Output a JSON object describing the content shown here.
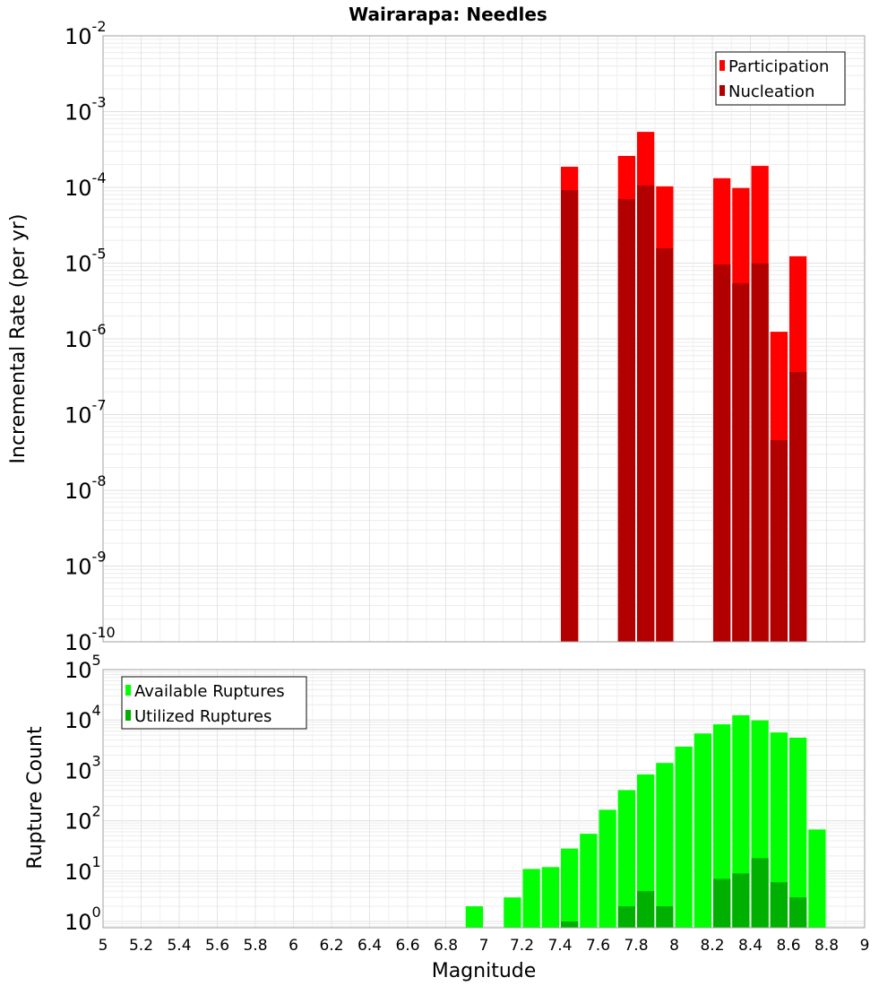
{
  "chart_data": [
    {
      "type": "bar",
      "title": "Wairarapa: Needles",
      "xlabel": "",
      "ylabel": "Incremental Rate (per yr)",
      "yscale": "log",
      "ylim": [
        1e-10,
        0.01
      ],
      "xlim": [
        5,
        9
      ],
      "grid": true,
      "legend_position": "top-right",
      "x": [
        7.45,
        7.75,
        7.85,
        7.95,
        8.25,
        8.35,
        8.45,
        8.55,
        8.65
      ],
      "series": [
        {
          "name": "Participation",
          "color": "#ff0000",
          "values": [
            0.000187,
            0.00026,
            0.00054,
            0.000103,
            0.000132,
            9.8e-05,
            0.000192,
            1.24e-06,
            1.23e-05
          ]
        },
        {
          "name": "Nucleation",
          "color": "#b20000",
          "values": [
            9.2e-05,
            7e-05,
            0.000106,
            1.57e-05,
            9.6e-06,
            5.4e-06,
            9.9e-06,
            4.6e-08,
            3.65e-07
          ]
        }
      ],
      "ytick_exponents": [
        -10,
        -9,
        -8,
        -7,
        -6,
        -5,
        -4,
        -3,
        -2
      ]
    },
    {
      "type": "bar",
      "xlabel": "Magnitude",
      "ylabel": "Rupture Count",
      "yscale": "log",
      "ylim": [
        0.75,
        100000.0
      ],
      "xlim": [
        5,
        9
      ],
      "grid": true,
      "legend_position": "top-left",
      "x": [
        6.95,
        7.15,
        7.25,
        7.35,
        7.45,
        7.55,
        7.65,
        7.75,
        7.85,
        7.95,
        8.05,
        8.15,
        8.25,
        8.35,
        8.45,
        8.55,
        8.65,
        8.75
      ],
      "series": [
        {
          "name": "Available Ruptures",
          "color": "#00ff00",
          "values": [
            2,
            3,
            11,
            12,
            28,
            55,
            165,
            405,
            830,
            1400,
            2950,
            5400,
            8200,
            12400,
            9800,
            5650,
            4450,
            67
          ]
        },
        {
          "name": "Utilized Ruptures",
          "color": "#00b000",
          "values": [
            0,
            0,
            0,
            0,
            1,
            0,
            0,
            2,
            4,
            2,
            0,
            0,
            7,
            9,
            18,
            6,
            3,
            0
          ]
        }
      ],
      "ytick_exponents": [
        0,
        1,
        2,
        3,
        4,
        5
      ],
      "xticks": [
        "5",
        "5.2",
        "5.4",
        "5.6",
        "5.8",
        "6",
        "6.2",
        "6.4",
        "6.6",
        "6.8",
        "7",
        "7.2",
        "7.4",
        "7.6",
        "7.8",
        "8",
        "8.2",
        "8.4",
        "8.6",
        "8.8",
        "9"
      ]
    }
  ]
}
